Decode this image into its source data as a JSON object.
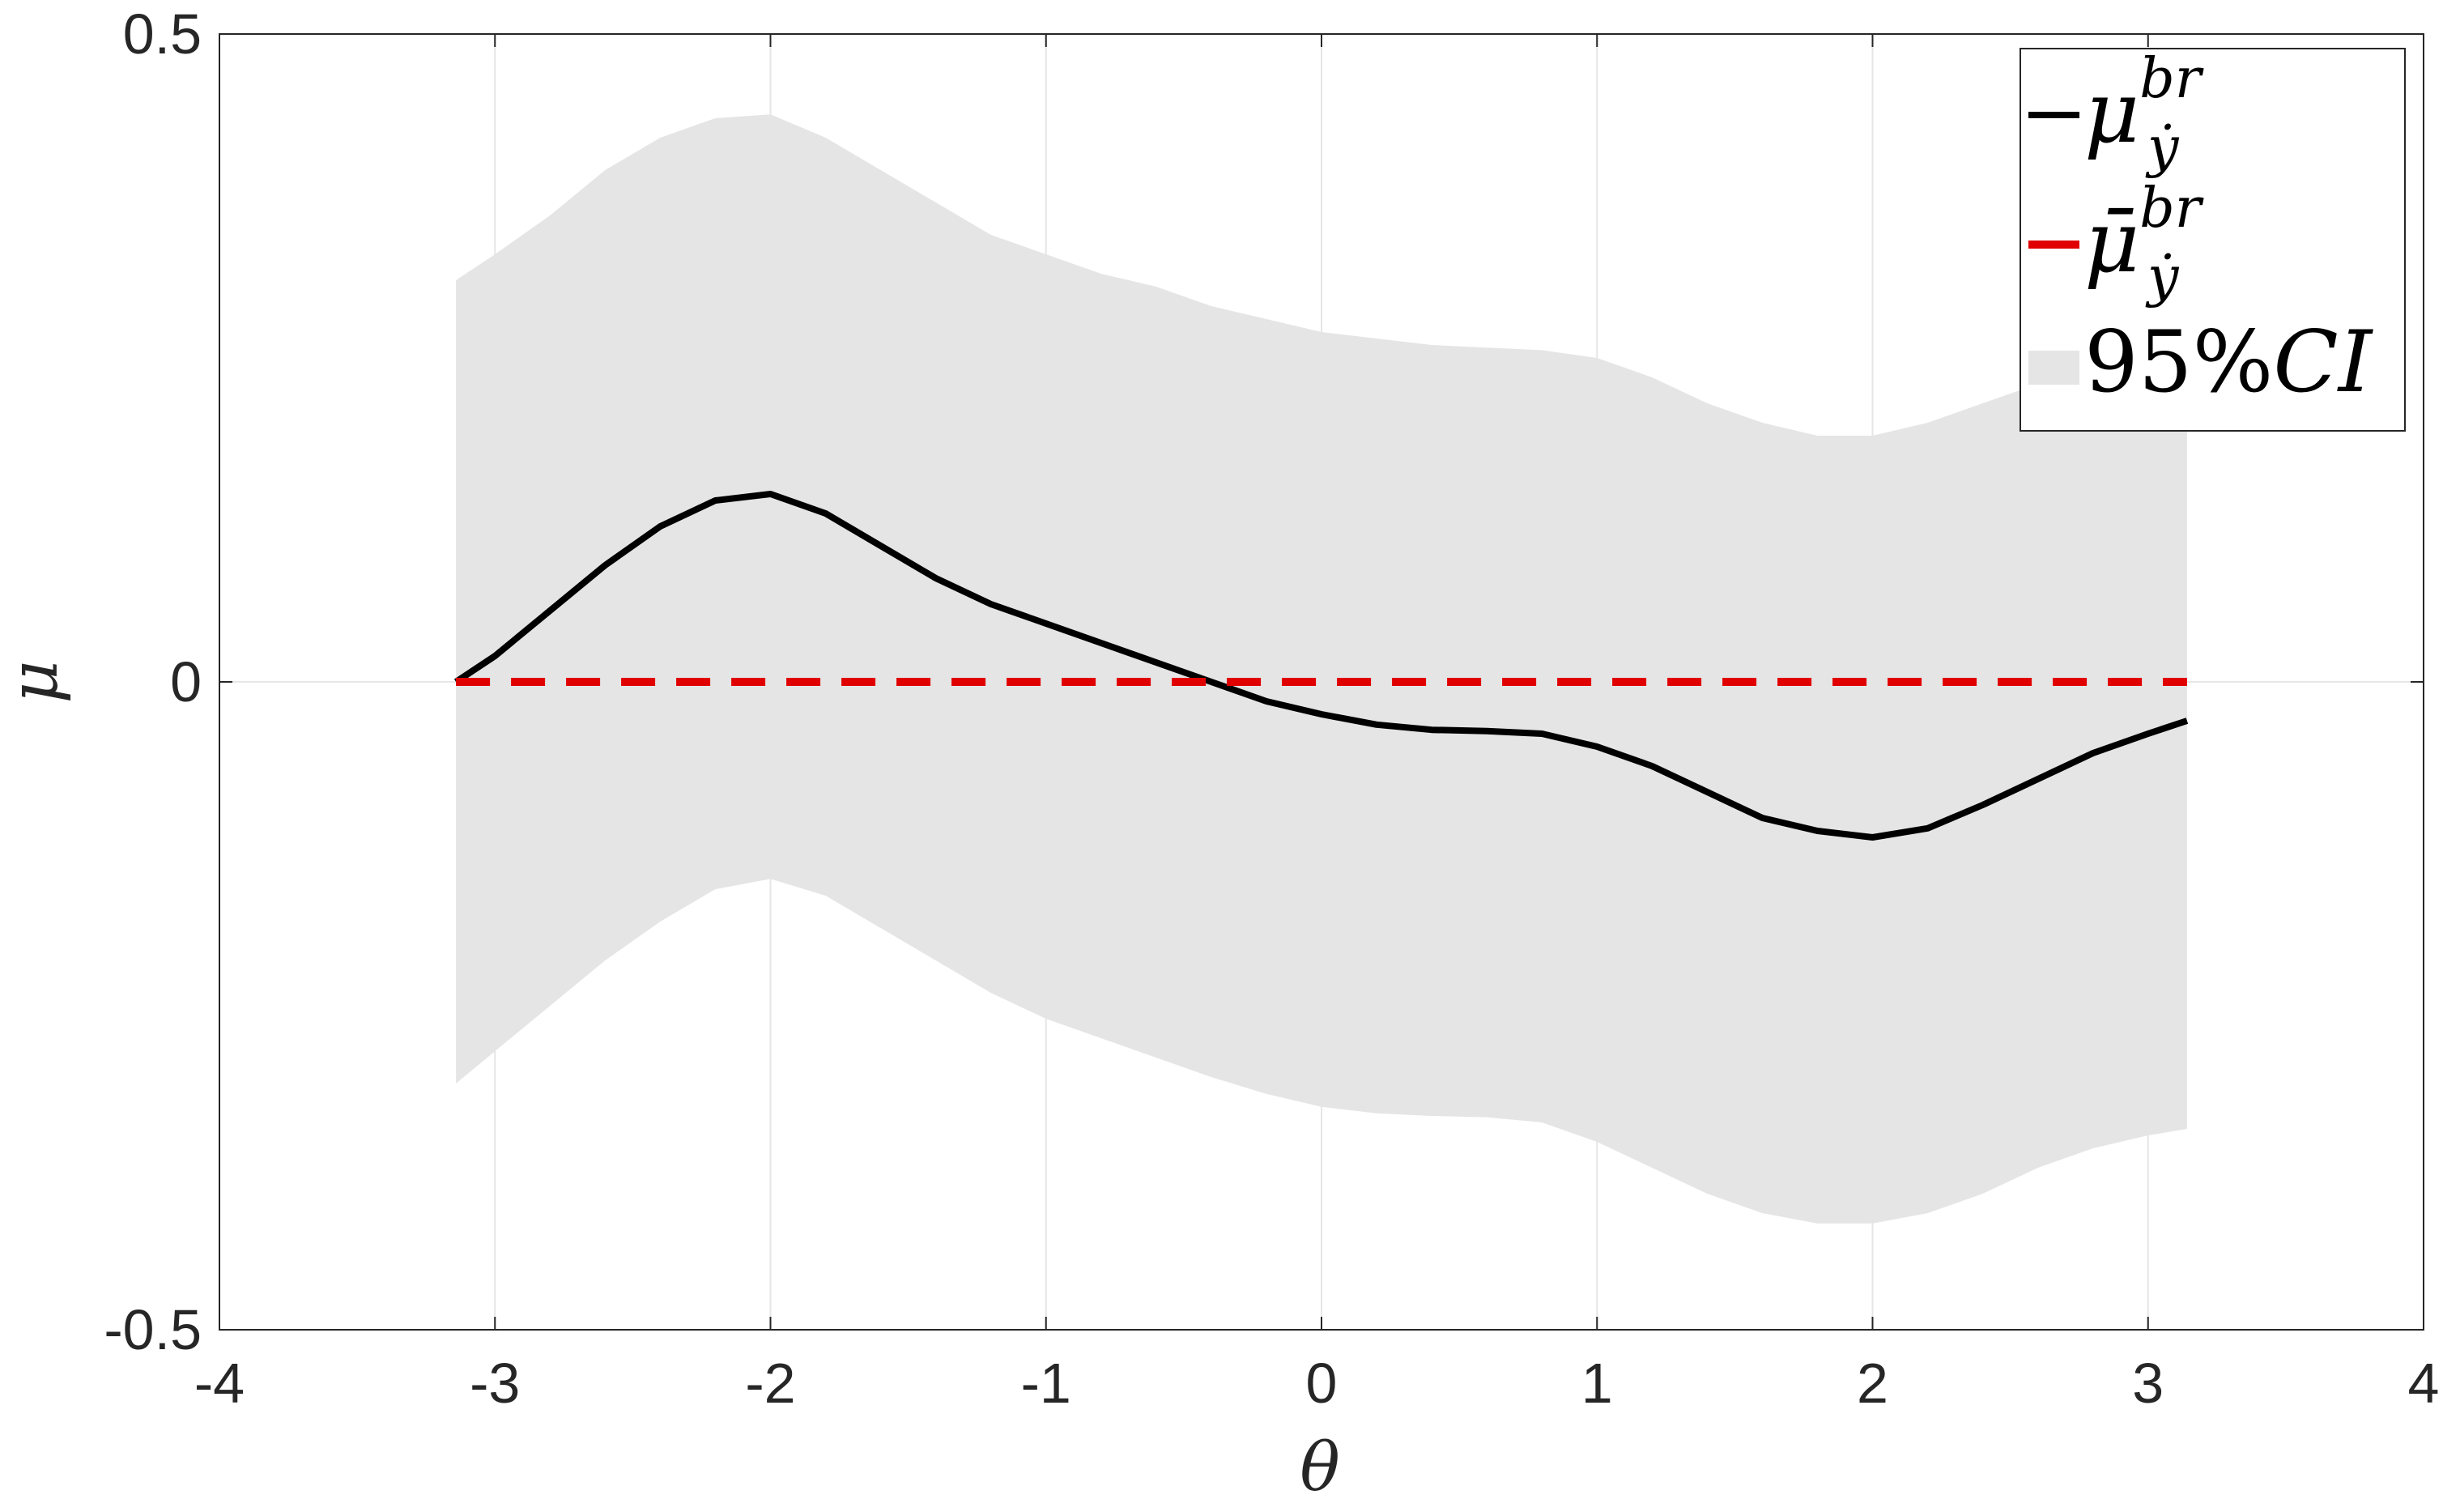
{
  "chart_data": {
    "type": "line",
    "xlabel": "θ",
    "ylabel": "μ",
    "xlim": [
      -4,
      4
    ],
    "ylim": [
      -0.5,
      0.5
    ],
    "xticks": [
      "-4",
      "-3",
      "-2",
      "-1",
      "0",
      "1",
      "2",
      "3",
      "4"
    ],
    "yticks": [
      "-0.5",
      "0",
      "0.5"
    ],
    "grid": true,
    "legend_position": "top-right",
    "legend": {
      "mean_base": "μ",
      "mean_sup": "br",
      "mean_sub": "ẏ",
      "prior_base": "μ̄",
      "prior_sup": "br",
      "prior_sub": "ẏ",
      "ci_num": "95%",
      "ci_var": "CI"
    },
    "x": [
      -3.1416,
      -3.0,
      -2.8,
      -2.6,
      -2.4,
      -2.2,
      -2.0,
      -1.8,
      -1.6,
      -1.4,
      -1.2,
      -1.0,
      -0.8,
      -0.6,
      -0.4,
      -0.2,
      0.0,
      0.2,
      0.4,
      0.6,
      0.8,
      1.0,
      1.2,
      1.4,
      1.6,
      1.8,
      2.0,
      2.2,
      2.4,
      2.6,
      2.8,
      3.0,
      3.1416
    ],
    "series": [
      {
        "values": [
          0.0,
          0.02,
          0.055,
          0.09,
          0.12,
          0.14,
          0.145,
          0.13,
          0.105,
          0.08,
          0.06,
          0.045,
          0.03,
          0.015,
          0.0,
          -0.015,
          -0.025,
          -0.033,
          -0.037,
          -0.038,
          -0.04,
          -0.05,
          -0.065,
          -0.085,
          -0.105,
          -0.115,
          -0.12,
          -0.113,
          -0.095,
          -0.075,
          -0.055,
          -0.04,
          -0.03
        ],
        "color": "#000000",
        "style": "solid"
      },
      {
        "values": [
          0.0,
          0.0,
          0.0,
          0.0,
          0.0,
          0.0,
          0.0,
          0.0,
          0.0,
          0.0,
          0.0,
          0.0,
          0.0,
          0.0,
          0.0,
          0.0,
          0.0,
          0.0,
          0.0,
          0.0,
          0.0,
          0.0,
          0.0,
          0.0,
          0.0,
          0.0,
          0.0,
          0.0,
          0.0,
          0.0,
          0.0,
          0.0,
          0.0
        ],
        "color": "#e00000",
        "style": "dashed"
      }
    ],
    "band": {
      "upper": [
        0.31,
        0.33,
        0.36,
        0.395,
        0.42,
        0.435,
        0.438,
        0.42,
        0.395,
        0.37,
        0.345,
        0.33,
        0.315,
        0.305,
        0.29,
        0.28,
        0.27,
        0.265,
        0.26,
        0.258,
        0.256,
        0.25,
        0.235,
        0.215,
        0.2,
        0.19,
        0.19,
        0.2,
        0.215,
        0.23,
        0.24,
        0.245,
        0.245
      ],
      "lower": [
        -0.31,
        -0.285,
        -0.25,
        -0.215,
        -0.185,
        -0.16,
        -0.152,
        -0.165,
        -0.19,
        -0.215,
        -0.24,
        -0.26,
        -0.275,
        -0.29,
        -0.305,
        -0.318,
        -0.328,
        -0.333,
        -0.335,
        -0.336,
        -0.34,
        -0.355,
        -0.375,
        -0.395,
        -0.41,
        -0.418,
        -0.418,
        -0.41,
        -0.395,
        -0.375,
        -0.36,
        -0.35,
        -0.345
      ],
      "color": "#e5e5e5"
    }
  }
}
